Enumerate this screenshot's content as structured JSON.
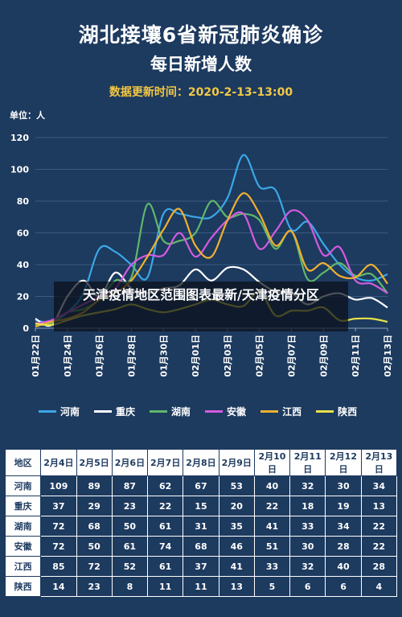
{
  "page": {
    "title": "湖北接壤6省新冠肺炎确诊",
    "subtitle": "每日新增人数",
    "update_time": "数据更新时间：2020-2-13-13:00",
    "overlay_text": "天津疫情地区范围图表最新/天津疫情分区"
  },
  "chart_data": {
    "type": "line",
    "unit_label": "单位：人",
    "x": [
      "01月22日",
      "01月23日",
      "01月24日",
      "01月25日",
      "01月26日",
      "01月27日",
      "01月28日",
      "01月29日",
      "01月30日",
      "01月31日",
      "02月01日",
      "02月02日",
      "02月03日",
      "02月04日",
      "02月05日",
      "02月06日",
      "02月07日",
      "02月08日",
      "02月09日",
      "02月10日",
      "02月11日",
      "02月12日",
      "02月13日"
    ],
    "x_tick_labels": [
      "01月22日",
      "01月24日",
      "01月26日",
      "01月28日",
      "01月30日",
      "02月01日",
      "02月03日",
      "02月05日",
      "02月07日",
      "02月09日",
      "02月11日",
      "02月13日"
    ],
    "ylim": [
      0,
      120
    ],
    "y_ticks": [
      0,
      20,
      40,
      60,
      80,
      100,
      120
    ],
    "grid": true,
    "legend_position": "bottom",
    "series": [
      {
        "name": "河南",
        "color": "#3aa8e8",
        "values": [
          5,
          4,
          10,
          22,
          50,
          48,
          40,
          32,
          72,
          72,
          70,
          70,
          82,
          109,
          89,
          87,
          62,
          67,
          53,
          40,
          32,
          30,
          34
        ]
      },
      {
        "name": "重庆",
        "color": "#ffffff",
        "values": [
          6,
          2,
          20,
          30,
          20,
          35,
          25,
          22,
          25,
          27,
          37,
          30,
          38,
          37,
          29,
          23,
          22,
          15,
          20,
          22,
          18,
          19,
          13
        ]
      },
      {
        "name": "湖南",
        "color": "#5fb76a",
        "values": [
          2,
          3,
          10,
          12,
          18,
          30,
          32,
          78,
          55,
          55,
          60,
          80,
          70,
          72,
          68,
          50,
          61,
          31,
          35,
          41,
          33,
          34,
          22
        ]
      },
      {
        "name": "安徽",
        "color": "#d45be0",
        "values": [
          3,
          5,
          10,
          15,
          20,
          25,
          40,
          46,
          46,
          60,
          45,
          57,
          68,
          72,
          50,
          61,
          74,
          68,
          46,
          51,
          30,
          28,
          22
        ]
      },
      {
        "name": "江西",
        "color": "#f0b030",
        "values": [
          1,
          4,
          6,
          10,
          18,
          22,
          30,
          45,
          62,
          75,
          52,
          45,
          68,
          85,
          72,
          52,
          61,
          37,
          41,
          33,
          32,
          40,
          28
        ]
      },
      {
        "name": "陕西",
        "color": "#e8e04a",
        "values": [
          3,
          2,
          5,
          8,
          10,
          12,
          15,
          12,
          10,
          12,
          15,
          18,
          15,
          14,
          23,
          8,
          11,
          11,
          13,
          5,
          6,
          6,
          4
        ]
      }
    ]
  },
  "table": {
    "headers": [
      "地区",
      "2月4日",
      "2月5日",
      "2月6日",
      "2月7日",
      "2月8日",
      "2月9日",
      "2月10日",
      "2月11日",
      "2月12日",
      "2月13日"
    ],
    "rows": [
      {
        "region": "河南",
        "values": [
          "109",
          "89",
          "87",
          "62",
          "67",
          "53",
          "40",
          "32",
          "30",
          "34"
        ]
      },
      {
        "region": "重庆",
        "values": [
          "37",
          "29",
          "23",
          "22",
          "15",
          "20",
          "22",
          "18",
          "19",
          "13"
        ]
      },
      {
        "region": "湖南",
        "values": [
          "72",
          "68",
          "50",
          "61",
          "31",
          "35",
          "41",
          "33",
          "34",
          "22"
        ]
      },
      {
        "region": "安徽",
        "values": [
          "72",
          "50",
          "61",
          "74",
          "68",
          "46",
          "51",
          "30",
          "28",
          "22"
        ]
      },
      {
        "region": "江西",
        "values": [
          "85",
          "72",
          "52",
          "61",
          "37",
          "41",
          "33",
          "32",
          "40",
          "28"
        ]
      },
      {
        "region": "陕西",
        "values": [
          "14",
          "23",
          "8",
          "11",
          "11",
          "13",
          "5",
          "6",
          "6",
          "4"
        ]
      }
    ]
  }
}
